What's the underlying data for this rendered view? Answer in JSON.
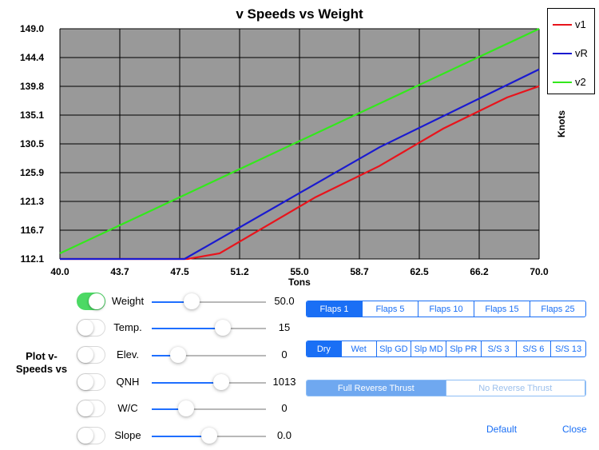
{
  "chart_data": {
    "type": "line",
    "title": "v Speeds vs Weight",
    "xlabel": "Tons",
    "ylabel": "Knots",
    "xlim": [
      40.0,
      70.0
    ],
    "ylim": [
      112.1,
      149.0
    ],
    "xticks": [
      "40.0",
      "43.7",
      "47.5",
      "51.2",
      "55.0",
      "58.7",
      "62.5",
      "66.2",
      "70.0"
    ],
    "yticks": [
      "149.0",
      "144.4",
      "139.8",
      "135.1",
      "130.5",
      "125.9",
      "121.3",
      "116.7",
      "112.1"
    ],
    "grid": true,
    "legend_position": "top-right, outside plot",
    "plot_background": "#999999",
    "series": [
      {
        "name": "v1",
        "color": "#e8141c",
        "x": [
          40,
          48,
          50,
          56,
          60,
          64,
          68,
          70
        ],
        "y": [
          112.1,
          112.1,
          113.0,
          122.0,
          127.0,
          133.0,
          138.0,
          139.8
        ]
      },
      {
        "name": "vR",
        "color": "#1a1ad0",
        "x": [
          40,
          47.8,
          60,
          70
        ],
        "y": [
          112.1,
          112.1,
          130.0,
          142.5
        ]
      },
      {
        "name": "v2",
        "color": "#33e81c",
        "x": [
          40,
          70
        ],
        "y": [
          113.0,
          149.0
        ]
      }
    ]
  },
  "legend": [
    {
      "label": "v1",
      "color": "#e8141c"
    },
    {
      "label": "vR",
      "color": "#1a1ad0"
    },
    {
      "label": "v2",
      "color": "#33e81c"
    }
  ],
  "controls": {
    "plot_label": "Plot v-Speeds vs",
    "rows": [
      {
        "label": "Weight",
        "on": true,
        "value": "50.0",
        "level": 0.35
      },
      {
        "label": "Temp.",
        "on": false,
        "value": "15",
        "level": 0.62
      },
      {
        "label": "Elev.",
        "on": false,
        "value": "0",
        "level": 0.23
      },
      {
        "label": "QNH",
        "on": false,
        "value": "1013",
        "level": 0.61
      },
      {
        "label": "W/C",
        "on": false,
        "value": "0",
        "level": 0.3
      },
      {
        "label": "Slope",
        "on": false,
        "value": "0.0",
        "level": 0.5
      }
    ]
  },
  "flaps": {
    "options": [
      "Flaps 1",
      "Flaps 5",
      "Flaps 10",
      "Flaps 15",
      "Flaps 25"
    ],
    "selected": 0
  },
  "runway": {
    "options": [
      "Dry",
      "Wet",
      "Slp GD",
      "Slp MD",
      "Slp PR",
      "S/S 3",
      "S/S 6",
      "S/S 13"
    ],
    "selected": 0
  },
  "thrust": {
    "options": [
      "Full Reverse Thrust",
      "No Reverse Thrust"
    ],
    "selected": 0
  },
  "buttons": {
    "default": "Default",
    "close": "Close"
  },
  "colors": {
    "accent": "#1a6ff5",
    "toggle_on": "#4cd964"
  }
}
